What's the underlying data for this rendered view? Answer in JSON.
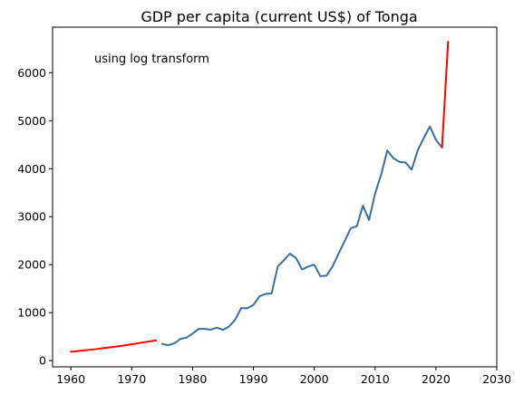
{
  "chart_data": {
    "type": "line",
    "title": "GDP per capita (current US$) of Tonga",
    "annotation": "using log transform",
    "xlabel": "",
    "ylabel": "",
    "xlim": [
      1957,
      2030
    ],
    "ylim": [
      -130,
      6950
    ],
    "xticks": [
      1960,
      1970,
      1980,
      1990,
      2000,
      2010,
      2020,
      2030
    ],
    "yticks": [
      0,
      1000,
      2000,
      3000,
      4000,
      5000,
      6000
    ],
    "grid": false,
    "colors": {
      "actual": "#3a6ea5",
      "estimated": "#ff0000"
    },
    "series": [
      {
        "role": "estimated",
        "x": [
          1960,
          1962,
          1964,
          1966,
          1968,
          1970,
          1972,
          1974
        ],
        "y": [
          185,
          210,
          237,
          268,
          302,
          340,
          383,
          420
        ]
      },
      {
        "role": "actual",
        "x": [
          1975,
          1976,
          1977,
          1978,
          1979,
          1980,
          1981,
          1982,
          1983,
          1984,
          1985,
          1986,
          1987,
          1988,
          1989,
          1990,
          1991,
          1992,
          1993,
          1994,
          1995,
          1996,
          1997,
          1998,
          1999,
          2000,
          2001,
          2002,
          2003,
          2004,
          2005,
          2006,
          2007,
          2008,
          2009,
          2010,
          2011,
          2012,
          2013,
          2014,
          2015,
          2016,
          2017,
          2018,
          2019,
          2020,
          2021
        ],
        "y": [
          350,
          320,
          360,
          450,
          480,
          560,
          660,
          660,
          645,
          685,
          640,
          710,
          850,
          1095,
          1090,
          1160,
          1340,
          1390,
          1400,
          1960,
          2090,
          2230,
          2140,
          1900,
          1960,
          2000,
          1760,
          1770,
          1960,
          2230,
          2490,
          2760,
          2800,
          3230,
          2930,
          3480,
          3880,
          4380,
          4220,
          4140,
          4130,
          3980,
          4380,
          4640,
          4880,
          4600,
          4440
        ]
      },
      {
        "role": "estimated",
        "x": [
          2021,
          2022
        ],
        "y": [
          4440,
          6650
        ]
      }
    ]
  }
}
